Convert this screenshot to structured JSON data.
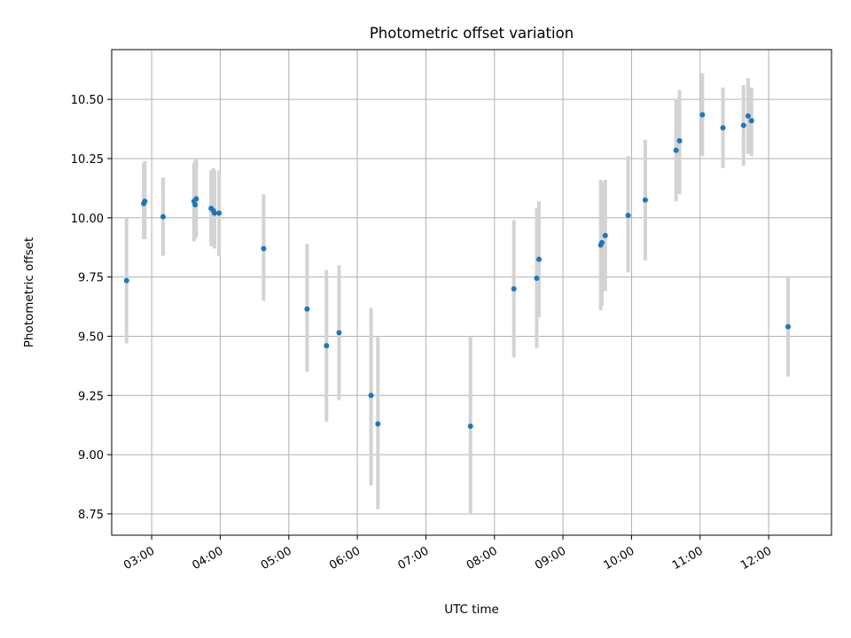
{
  "chart_data": {
    "type": "scatter",
    "title": "Photometric offset variation",
    "xlabel": "UTC time",
    "ylabel": "Photometric offset",
    "xlim": [
      "02:25",
      "12:55"
    ],
    "ylim": [
      8.66,
      10.71
    ],
    "grid": true,
    "x_ticks": [
      "03:00",
      "04:00",
      "05:00",
      "06:00",
      "07:00",
      "08:00",
      "09:00",
      "10:00",
      "11:00",
      "12:00"
    ],
    "y_ticks": [
      8.75,
      9.0,
      9.25,
      9.5,
      9.75,
      10.0,
      10.25,
      10.5
    ],
    "y_tick_labels": [
      "8.75",
      "9.00",
      "9.25",
      "9.50",
      "9.75",
      "10.00",
      "10.25",
      "10.50"
    ],
    "colors": {
      "point": "#1f77b4",
      "errorbar": "#d3d3d3",
      "grid": "#b0b0b0"
    },
    "points": [
      {
        "x": "02:38",
        "y": 9.735,
        "lo": 9.47,
        "hi": 10.0
      },
      {
        "x": "02:53",
        "y": 10.06,
        "lo": 9.91,
        "hi": 10.23
      },
      {
        "x": "02:54",
        "y": 10.07,
        "lo": 9.91,
        "hi": 10.24
      },
      {
        "x": "03:10",
        "y": 10.005,
        "lo": 9.84,
        "hi": 10.17
      },
      {
        "x": "03:37",
        "y": 10.07,
        "lo": 9.9,
        "hi": 10.23
      },
      {
        "x": "03:38",
        "y": 10.055,
        "lo": 9.91,
        "hi": 10.24
      },
      {
        "x": "03:39",
        "y": 10.08,
        "lo": 9.92,
        "hi": 10.25
      },
      {
        "x": "03:52",
        "y": 10.04,
        "lo": 9.88,
        "hi": 10.2
      },
      {
        "x": "03:54",
        "y": 10.03,
        "lo": 9.88,
        "hi": 10.21
      },
      {
        "x": "03:55",
        "y": 10.02,
        "lo": 9.87,
        "hi": 10.2
      },
      {
        "x": "03:59",
        "y": 10.02,
        "lo": 9.84,
        "hi": 10.2
      },
      {
        "x": "04:38",
        "y": 9.87,
        "lo": 9.65,
        "hi": 10.1
      },
      {
        "x": "05:16",
        "y": 9.615,
        "lo": 9.35,
        "hi": 9.89
      },
      {
        "x": "05:33",
        "y": 9.46,
        "lo": 9.14,
        "hi": 9.78
      },
      {
        "x": "05:44",
        "y": 9.515,
        "lo": 9.23,
        "hi": 9.8
      },
      {
        "x": "06:12",
        "y": 9.25,
        "lo": 8.87,
        "hi": 9.62
      },
      {
        "x": "06:18",
        "y": 9.13,
        "lo": 8.77,
        "hi": 9.5
      },
      {
        "x": "07:39",
        "y": 9.12,
        "lo": 8.75,
        "hi": 9.5
      },
      {
        "x": "08:17",
        "y": 9.7,
        "lo": 9.41,
        "hi": 9.99
      },
      {
        "x": "08:37",
        "y": 9.745,
        "lo": 9.45,
        "hi": 10.04
      },
      {
        "x": "08:39",
        "y": 9.825,
        "lo": 9.58,
        "hi": 10.07
      },
      {
        "x": "09:33",
        "y": 9.885,
        "lo": 9.61,
        "hi": 10.16
      },
      {
        "x": "09:34",
        "y": 9.895,
        "lo": 9.63,
        "hi": 10.15
      },
      {
        "x": "09:37",
        "y": 9.925,
        "lo": 9.69,
        "hi": 10.16
      },
      {
        "x": "09:57",
        "y": 10.01,
        "lo": 9.77,
        "hi": 10.26
      },
      {
        "x": "10:12",
        "y": 10.075,
        "lo": 9.82,
        "hi": 10.33
      },
      {
        "x": "10:39",
        "y": 10.285,
        "lo": 10.07,
        "hi": 10.5
      },
      {
        "x": "10:42",
        "y": 10.325,
        "lo": 10.1,
        "hi": 10.54
      },
      {
        "x": "11:02",
        "y": 10.435,
        "lo": 10.26,
        "hi": 10.61
      },
      {
        "x": "11:20",
        "y": 10.38,
        "lo": 10.21,
        "hi": 10.55
      },
      {
        "x": "11:38",
        "y": 10.39,
        "lo": 10.22,
        "hi": 10.56
      },
      {
        "x": "11:42",
        "y": 10.43,
        "lo": 10.27,
        "hi": 10.59
      },
      {
        "x": "11:45",
        "y": 10.41,
        "lo": 10.26,
        "hi": 10.55
      },
      {
        "x": "12:17",
        "y": 9.54,
        "lo": 9.33,
        "hi": 9.75
      }
    ]
  }
}
